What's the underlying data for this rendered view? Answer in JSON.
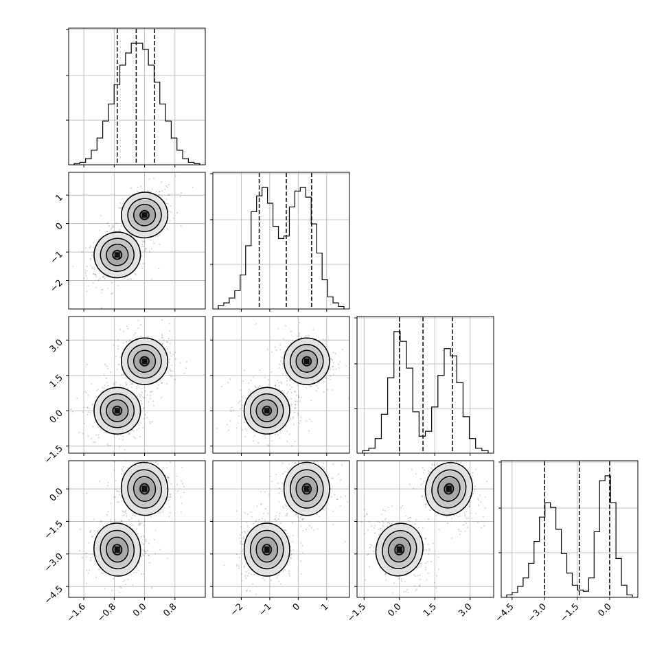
{
  "chart_data": {
    "type": "corner",
    "n_params": 4,
    "grid": true,
    "params": [
      {
        "xlim": [
          -2.0,
          1.6
        ],
        "ticks": [
          -1.6,
          -0.8,
          0.0,
          0.8
        ],
        "tick_labels": [
          "−1.6",
          "−0.8",
          "0.0",
          "0.8"
        ],
        "quantiles": [
          -0.72,
          -0.22,
          0.26
        ]
      },
      {
        "xlim": [
          -3.0,
          1.8
        ],
        "ticks": [
          -2,
          -1,
          0,
          1
        ],
        "tick_labels": [
          "−2",
          "−1",
          "0",
          "1"
        ],
        "quantiles": [
          -1.37,
          -0.42,
          0.47
        ]
      },
      {
        "xlim": [
          -1.8,
          4.0
        ],
        "ticks": [
          -1.5,
          0.0,
          1.5,
          3.0
        ],
        "tick_labels": [
          "−1.5",
          "0.0",
          "1.5",
          "3.0"
        ],
        "quantiles": [
          0.0,
          1.0,
          2.25
        ]
      },
      {
        "xlim": [
          -5.0,
          1.3
        ],
        "ticks": [
          -4.5,
          -3.0,
          -1.5,
          0.0
        ],
        "tick_labels": [
          "−4.5",
          "−3.0",
          "−1.5",
          "0.0"
        ],
        "quantiles": [
          -3.0,
          -1.4,
          0.0
        ]
      }
    ],
    "row_ticks": [
      null,
      {
        "ticks": [
          -2,
          -1,
          0,
          1
        ],
        "tick_labels": [
          "−2",
          "−1",
          "0",
          "1"
        ]
      },
      {
        "ticks": [
          -1.5,
          0.0,
          1.5,
          3.0
        ],
        "tick_labels": [
          "−1.5",
          "0.0",
          "1.5",
          "3.0"
        ]
      },
      {
        "ticks": [
          -4.5,
          -3.0,
          -1.5,
          0.0
        ],
        "tick_labels": [
          "−4.5",
          "−3.0",
          "−1.5",
          "0.0"
        ]
      }
    ],
    "histograms": [
      {
        "counts": [
          0.01,
          0.02,
          0.05,
          0.12,
          0.22,
          0.36,
          0.5,
          0.66,
          0.82,
          0.92,
          1.0,
          1.0,
          0.95,
          0.82,
          0.68,
          0.5,
          0.36,
          0.22,
          0.12,
          0.05,
          0.02,
          0.01
        ]
      },
      {
        "counts": [
          0.03,
          0.05,
          0.09,
          0.15,
          0.28,
          0.52,
          0.8,
          0.93,
          1.0,
          0.87,
          0.68,
          0.58,
          0.6,
          0.84,
          0.97,
          1.0,
          0.92,
          0.7,
          0.46,
          0.24,
          0.1,
          0.05,
          0.02
        ]
      },
      {
        "counts": [
          0.02,
          0.04,
          0.12,
          0.32,
          0.62,
          1.0,
          0.92,
          0.7,
          0.34,
          0.14,
          0.18,
          0.38,
          0.64,
          0.86,
          0.8,
          0.58,
          0.3,
          0.12,
          0.04,
          0.02
        ]
      },
      {
        "counts": [
          0.02,
          0.04,
          0.09,
          0.16,
          0.28,
          0.46,
          0.66,
          0.78,
          0.74,
          0.56,
          0.36,
          0.2,
          0.1,
          0.06,
          0.05,
          0.16,
          0.54,
          0.96,
          1.0,
          0.78,
          0.32,
          0.1,
          0.02
        ]
      }
    ],
    "modes": [
      [
        -0.72,
        -1.1,
        0.0,
        -2.8
      ],
      [
        0.0,
        0.3,
        2.1,
        0.0
      ]
    ]
  }
}
